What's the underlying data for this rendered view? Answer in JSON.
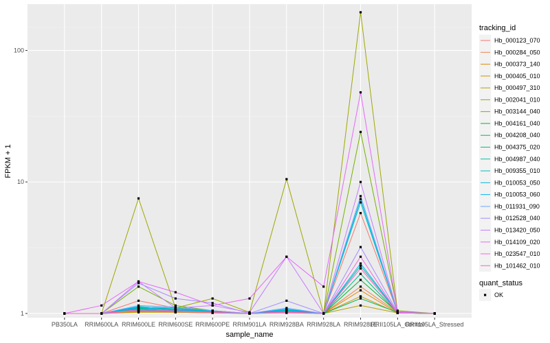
{
  "chart_data": {
    "type": "line",
    "title": "",
    "xlabel": "sample_name",
    "ylabel": "FPKM + 1",
    "y_scale": "log10",
    "ylim": [
      0.93,
      225
    ],
    "y_ticks": [
      1,
      10,
      100
    ],
    "y_tick_labels": [
      "1",
      "10",
      "100"
    ],
    "grid": true,
    "categories": [
      "PB350LA",
      "RRIM600LA",
      "RRIM600LE",
      "RRIM600SE",
      "RRIM600PE",
      "RRIM901LA",
      "RRIM928BA",
      "RRIM928LA",
      "RRIM928LE",
      "RRII105LA_Control",
      "RRII105LA_Stressed"
    ],
    "legend_position": "right",
    "legend_title": "tracking_id",
    "series": [
      {
        "name": "Hb_000123_070",
        "color": "#F8766D",
        "values": [
          1.0,
          1.0,
          1.25,
          1.1,
          1.05,
          1.0,
          1.05,
          1.0,
          5.8,
          1.02,
          1.0
        ]
      },
      {
        "name": "Hb_000284_050",
        "color": "#EE8043",
        "values": [
          1.0,
          1.0,
          1.05,
          1.03,
          1.02,
          1.0,
          1.03,
          1.0,
          1.6,
          1.02,
          1.0
        ]
      },
      {
        "name": "Hb_000373_140",
        "color": "#E18A00",
        "values": [
          1.0,
          1.0,
          1.03,
          1.02,
          1.01,
          1.0,
          1.02,
          1.0,
          1.5,
          1.01,
          1.0
        ]
      },
      {
        "name": "Hb_000405_010",
        "color": "#CF9400",
        "values": [
          1.0,
          1.0,
          1.02,
          1.02,
          1.01,
          1.0,
          1.01,
          1.0,
          1.35,
          1.01,
          1.0
        ]
      },
      {
        "name": "Hb_000497_310",
        "color": "#B79F00",
        "values": [
          1.0,
          1.0,
          1.04,
          1.03,
          1.02,
          1.0,
          1.02,
          1.0,
          1.15,
          1.01,
          1.0
        ]
      },
      {
        "name": "Hb_002041_010",
        "color": "#9EA700",
        "values": [
          1.0,
          1.0,
          7.5,
          1.1,
          1.3,
          1.02,
          10.5,
          1.0,
          195,
          1.03,
          1.0
        ]
      },
      {
        "name": "Hb_003144_040",
        "color": "#76B000",
        "values": [
          1.0,
          1.0,
          1.6,
          1.15,
          1.05,
          1.0,
          1.05,
          1.0,
          24,
          1.05,
          1.0
        ]
      },
      {
        "name": "Hb_004161_040",
        "color": "#00B52A",
        "values": [
          1.0,
          1.0,
          1.08,
          1.05,
          1.02,
          1.0,
          1.03,
          1.0,
          1.8,
          1.02,
          1.0
        ]
      },
      {
        "name": "Hb_004208_040",
        "color": "#00BA5E",
        "values": [
          1.0,
          1.0,
          1.1,
          1.08,
          1.03,
          1.0,
          1.04,
          1.0,
          1.3,
          1.02,
          1.0
        ]
      },
      {
        "name": "Hb_004375_020",
        "color": "#00BD85",
        "values": [
          1.0,
          1.0,
          1.06,
          1.04,
          1.02,
          1.0,
          1.02,
          1.0,
          2.0,
          1.01,
          1.0
        ]
      },
      {
        "name": "Hb_004987_040",
        "color": "#00BFA6",
        "values": [
          1.0,
          1.0,
          1.12,
          1.1,
          1.04,
          1.0,
          1.05,
          1.0,
          2.3,
          1.02,
          1.0
        ]
      },
      {
        "name": "Hb_009355_010",
        "color": "#00BEC3",
        "values": [
          1.0,
          1.0,
          1.09,
          1.07,
          1.03,
          1.0,
          1.06,
          1.0,
          7.0,
          1.02,
          1.0
        ]
      },
      {
        "name": "Hb_010053_050",
        "color": "#00B9DB",
        "values": [
          1.0,
          1.0,
          1.13,
          1.08,
          1.04,
          1.0,
          1.08,
          1.0,
          7.4,
          1.02,
          1.0
        ]
      },
      {
        "name": "Hb_010053_060",
        "color": "#00B0F0",
        "values": [
          1.0,
          1.0,
          1.11,
          1.06,
          1.03,
          1.0,
          1.07,
          1.0,
          2.4,
          1.02,
          1.0
        ]
      },
      {
        "name": "Hb_011931_090",
        "color": "#6AA6FF",
        "values": [
          1.0,
          1.0,
          1.15,
          1.12,
          1.05,
          1.0,
          1.1,
          1.0,
          7.8,
          1.03,
          1.0
        ]
      },
      {
        "name": "Hb_012528_040",
        "color": "#A58AFF",
        "values": [
          1.0,
          1.0,
          1.7,
          1.3,
          1.2,
          1.0,
          1.25,
          1.0,
          3.2,
          1.02,
          1.0
        ]
      },
      {
        "name": "Hb_013420_050",
        "color": "#C77CFF",
        "values": [
          1.0,
          1.0,
          1.75,
          1.1,
          1.15,
          1.02,
          2.7,
          1.0,
          10.0,
          1.02,
          1.0
        ]
      },
      {
        "name": "Hb_014109_020",
        "color": "#E468F9",
        "values": [
          1.0,
          1.15,
          1.75,
          1.45,
          1.15,
          1.3,
          2.7,
          1.6,
          48,
          1.02,
          1.0
        ]
      },
      {
        "name": "Hb_023547_010",
        "color": "#F564E3",
        "values": [
          1.0,
          1.0,
          1.05,
          1.03,
          1.02,
          1.0,
          1.02,
          1.0,
          2.7,
          1.01,
          1.0
        ]
      },
      {
        "name": "Hb_101462_010",
        "color": "#FF61C3",
        "values": [
          1.0,
          1.0,
          1.07,
          1.05,
          1.02,
          1.0,
          1.03,
          1.0,
          2.2,
          1.01,
          1.0
        ]
      }
    ],
    "shape_legend": {
      "title": "quant_status",
      "items": [
        "OK"
      ]
    }
  }
}
